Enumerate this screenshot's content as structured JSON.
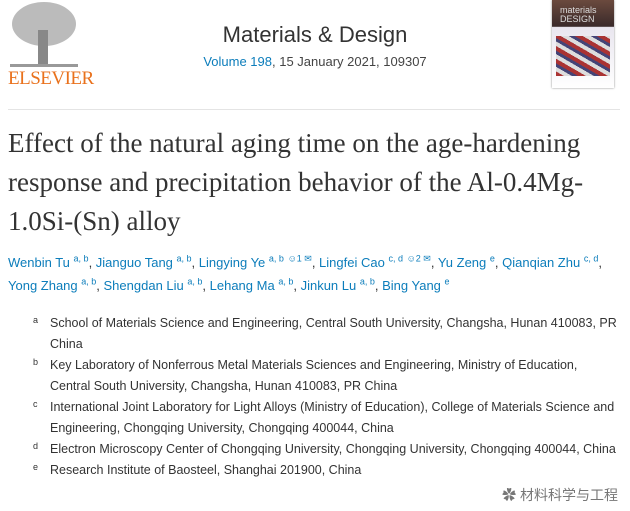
{
  "publisher": {
    "logo_text": "ELSEVIER"
  },
  "journal": {
    "name": "Materials & Design",
    "volume_link": "Volume 198",
    "issue_rest": ", 15 January 2021, 109307",
    "cover_text": "materials DESIGN"
  },
  "article": {
    "title": "Effect of the natural aging time on the age-hardening response and precipitation behavior of the Al-0.4Mg-1.0Si-(Sn) alloy"
  },
  "authors": [
    {
      "name": "Wenbin Tu",
      "sup": "a, b"
    },
    {
      "name": "Jianguo Tang",
      "sup": "a, b"
    },
    {
      "name": "Lingying Ye",
      "sup": "a, b",
      "extra": "☺1 ✉"
    },
    {
      "name": "Lingfei Cao",
      "sup": "c, d",
      "extra": "☺2 ✉"
    },
    {
      "name": "Yu Zeng",
      "sup": "e"
    },
    {
      "name": "Qianqian Zhu",
      "sup": "c, d"
    },
    {
      "name": "Yong Zhang",
      "sup": "a, b"
    },
    {
      "name": "Shengdan Liu",
      "sup": "a, b"
    },
    {
      "name": "Lehang Ma",
      "sup": "a, b"
    },
    {
      "name": "Jinkun Lu",
      "sup": "a, b"
    },
    {
      "name": "Bing Yang",
      "sup": "e"
    }
  ],
  "affiliations": [
    {
      "label": "a",
      "text": "School of Materials Science and Engineering, Central South University, Changsha, Hunan 410083, PR China"
    },
    {
      "label": "b",
      "text": "Key Laboratory of Nonferrous Metal Materials Sciences and Engineering, Ministry of Education, Central South University, Changsha, Hunan 410083, PR China"
    },
    {
      "label": "c",
      "text": "International Joint Laboratory for Light Alloys (Ministry of Education), College of Materials Science and Engineering, Chongqing University, Chongqing 400044, China"
    },
    {
      "label": "d",
      "text": "Electron Microscopy Center of Chongqing University, Chongqing University, Chongqing 400044, China"
    },
    {
      "label": "e",
      "text": "Research Institute of Baosteel, Shanghai 201900, China"
    }
  ],
  "watermark": "材料科学与工程",
  "colors": {
    "link": "#0c7dbb",
    "elsevier": "#e9711c"
  }
}
